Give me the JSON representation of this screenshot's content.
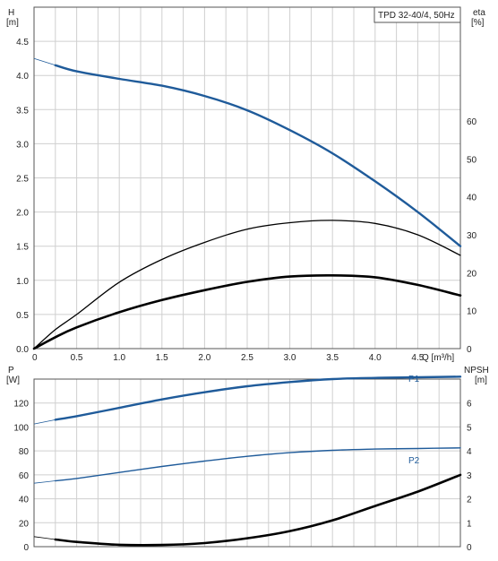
{
  "chart_data": [
    {
      "type": "line",
      "title": "TPD 32-40/4, 50Hz",
      "xlabel": "Q [m³/h]",
      "ylabel_left": [
        "H",
        "[m]"
      ],
      "ylabel_right": [
        "eta",
        "[%]"
      ],
      "xlim": [
        0,
        5.0
      ],
      "ylim_left": [
        0,
        5.0
      ],
      "ylim_right": [
        0,
        90
      ],
      "x_ticks": [
        "0",
        "0.5",
        "1.0",
        "1.5",
        "2.0",
        "2.5",
        "3.0",
        "3.5",
        "4.0",
        "4.5"
      ],
      "y_ticks_left": [
        "0.0",
        "0.5",
        "1.0",
        "1.5",
        "2.0",
        "2.5",
        "3.0",
        "3.5",
        "4.0",
        "4.5"
      ],
      "y_ticks_right": [
        "0",
        "10",
        "20",
        "30",
        "40",
        "50",
        "60"
      ],
      "grid": true,
      "series": [
        {
          "axis": "left",
          "color": "#1f5b9a",
          "extension": {
            "x": [
              0.0,
              0.25
            ],
            "y": [
              4.25,
              4.15
            ]
          },
          "x": [
            0.25,
            0.5,
            1.0,
            1.5,
            2.0,
            2.5,
            3.0,
            3.5,
            4.0,
            4.5,
            5.0
          ],
          "y": [
            4.15,
            4.06,
            3.95,
            3.85,
            3.7,
            3.49,
            3.2,
            2.86,
            2.45,
            2.0,
            1.5
          ]
        },
        {
          "axis": "right",
          "color": "#000000",
          "x": [
            0.0,
            0.25,
            0.5,
            1.0,
            1.5,
            2.0,
            2.5,
            3.0,
            3.5,
            4.0,
            4.5,
            5.0
          ],
          "y": [
            0,
            5,
            9,
            17.5,
            23.5,
            28,
            31.5,
            33.2,
            33.8,
            33,
            30,
            24.6
          ]
        },
        {
          "axis": "right",
          "color": "#000000",
          "x": [
            0.0,
            0.25,
            0.5,
            1.0,
            1.5,
            2.0,
            2.5,
            3.0,
            3.5,
            4.0,
            4.5,
            5.0
          ],
          "y": [
            0,
            3,
            5.6,
            9.6,
            12.8,
            15.4,
            17.6,
            19,
            19.3,
            18.8,
            16.8,
            14
          ]
        }
      ]
    },
    {
      "type": "line",
      "xlim": [
        0,
        5.0
      ],
      "ylim_left": [
        0,
        140
      ],
      "ylim_right": [
        0,
        7
      ],
      "ylabel_left": [
        "P",
        "[W]"
      ],
      "ylabel_right": [
        "NPSH",
        "[m]"
      ],
      "y_ticks_left": [
        "0",
        "20",
        "40",
        "60",
        "80",
        "100",
        "120"
      ],
      "y_ticks_right": [
        "0",
        "1",
        "2",
        "3",
        "4",
        "5",
        "6"
      ],
      "grid": true,
      "series": [
        {
          "name": "P1",
          "axis": "left",
          "color": "#1f5b9a",
          "extension": {
            "x": [
              0.0,
              0.25
            ],
            "y": [
              102.5,
              106
            ]
          },
          "x": [
            0.25,
            0.5,
            1.0,
            1.5,
            2.0,
            2.5,
            3.0,
            3.5,
            4.0,
            4.5,
            5.0
          ],
          "y": [
            106,
            109,
            116,
            123,
            129,
            134,
            137.5,
            140,
            141,
            141.5,
            142
          ]
        },
        {
          "name": "P2",
          "axis": "left",
          "color": "#1f5b9a",
          "extension": {
            "x": [
              0.0,
              0.25
            ],
            "y": [
              53,
              55
            ]
          },
          "x": [
            0.25,
            0.5,
            1.0,
            1.5,
            2.0,
            2.5,
            3.0,
            3.5,
            4.0,
            4.5,
            5.0
          ],
          "y": [
            55,
            57,
            62,
            67,
            71.5,
            75.5,
            78.5,
            80.5,
            81.5,
            82,
            82.5
          ]
        },
        {
          "axis": "right",
          "color": "#000000",
          "extension": {
            "x": [
              0.0,
              0.25
            ],
            "y": [
              0.42,
              0.3
            ]
          },
          "x": [
            0.25,
            0.5,
            1.0,
            1.5,
            2.0,
            2.5,
            3.0,
            3.5,
            4.0,
            4.5,
            5.0
          ],
          "y": [
            0.3,
            0.2,
            0.08,
            0.07,
            0.15,
            0.35,
            0.65,
            1.1,
            1.7,
            2.3,
            3.0
          ]
        }
      ]
    }
  ]
}
